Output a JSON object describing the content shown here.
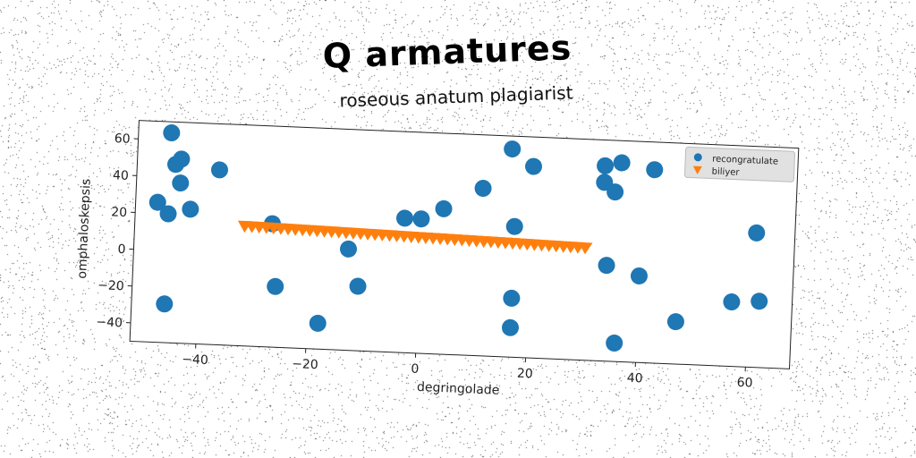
{
  "chart_data": {
    "type": "scatter",
    "title": "Q armatures",
    "subtitle": "roseous anatum plagiarist",
    "xlabel": "degringolade",
    "ylabel": "omphaloskepsis",
    "xlim": [
      -52,
      68
    ],
    "ylim": [
      -50,
      70
    ],
    "xticks": [
      -40,
      -20,
      0,
      20,
      40,
      60
    ],
    "yticks": [
      -40,
      -20,
      0,
      20,
      40,
      60
    ],
    "grid": false,
    "legend": "top-right",
    "series": [
      {
        "name": "recongratulate",
        "color": "#1f77b4",
        "marker": "circle",
        "points": [
          [
            -46,
            64
          ],
          [
            -45,
            47
          ],
          [
            -44,
            50
          ],
          [
            -44,
            37
          ],
          [
            -48,
            26
          ],
          [
            -46,
            20
          ],
          [
            -42,
            23
          ],
          [
            -37,
            45
          ],
          [
            -46,
            -29
          ],
          [
            -27,
            17
          ],
          [
            -26,
            -17
          ],
          [
            -18,
            -36
          ],
          [
            -13,
            5
          ],
          [
            -11,
            -15
          ],
          [
            -3,
            23
          ],
          [
            0,
            23
          ],
          [
            4,
            29
          ],
          [
            11,
            41
          ],
          [
            16,
            63
          ],
          [
            17,
            21
          ],
          [
            17,
            -18
          ],
          [
            17,
            -34
          ],
          [
            20,
            54
          ],
          [
            33,
            56
          ],
          [
            33,
            47
          ],
          [
            35,
            42
          ],
          [
            36,
            58
          ],
          [
            34,
            2
          ],
          [
            36,
            -40
          ],
          [
            40,
            -3
          ],
          [
            42,
            55
          ],
          [
            47,
            -27
          ],
          [
            57,
            -15
          ],
          [
            61,
            23
          ],
          [
            62,
            -14
          ]
        ]
      },
      {
        "name": "biliyer",
        "color": "#ff7f0e",
        "marker": "triangle-down",
        "line": {
          "x_start": -32,
          "x_end": 30,
          "y_start": 15,
          "y_end": 11,
          "count": 48
        }
      }
    ]
  }
}
